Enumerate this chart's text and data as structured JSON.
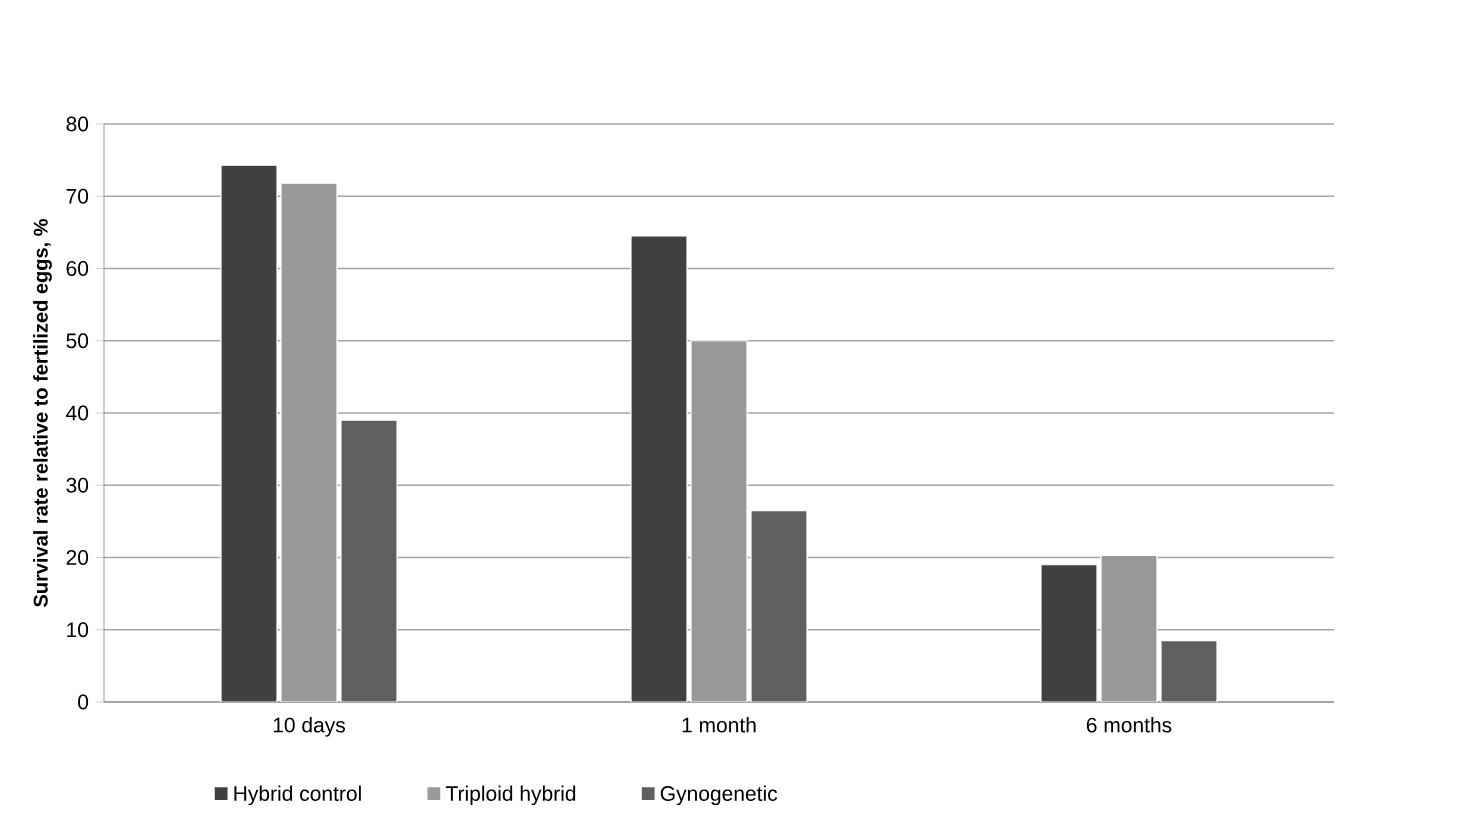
{
  "chart_data": {
    "type": "bar",
    "ylabel": "Survival rate relative to fertilized eggs, %",
    "categories": [
      "10 days",
      "1 month",
      "6 months"
    ],
    "series": [
      {
        "name": "Hybrid control",
        "color": "#404040",
        "values": [
          74.3,
          64.5,
          19
        ]
      },
      {
        "name": "Triploid hybrid",
        "color": "#999999",
        "values": [
          71.8,
          50,
          20.3
        ]
      },
      {
        "name": "Gynogenetic",
        "color": "#5f5f5f",
        "values": [
          39,
          26.5,
          8.5
        ]
      }
    ],
    "ylim": [
      0,
      80
    ],
    "yticks": [
      0,
      10,
      20,
      30,
      40,
      50,
      60,
      70,
      80
    ],
    "grid": "y",
    "legend": "bottom"
  }
}
